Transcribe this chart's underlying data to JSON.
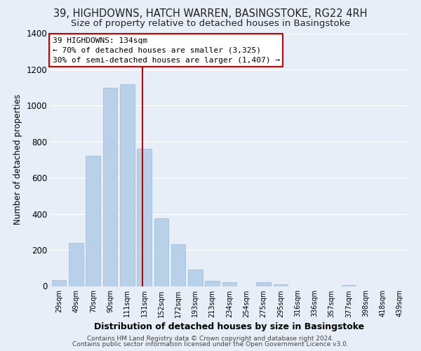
{
  "title": "39, HIGHDOWNS, HATCH WARREN, BASINGSTOKE, RG22 4RH",
  "subtitle": "Size of property relative to detached houses in Basingstoke",
  "xlabel": "Distribution of detached houses by size in Basingstoke",
  "ylabel": "Number of detached properties",
  "bar_labels": [
    "29sqm",
    "49sqm",
    "70sqm",
    "90sqm",
    "111sqm",
    "131sqm",
    "152sqm",
    "172sqm",
    "193sqm",
    "213sqm",
    "234sqm",
    "254sqm",
    "275sqm",
    "295sqm",
    "316sqm",
    "336sqm",
    "357sqm",
    "377sqm",
    "398sqm",
    "418sqm",
    "439sqm"
  ],
  "bar_values": [
    35,
    240,
    720,
    1100,
    1120,
    760,
    375,
    230,
    90,
    30,
    20,
    0,
    20,
    10,
    0,
    0,
    0,
    5,
    0,
    0,
    0
  ],
  "bar_color": "#b8d0e8",
  "bar_edge_color": "#9ab8d8",
  "vline_color": "#cc0000",
  "annotation_title": "39 HIGHDOWNS: 134sqm",
  "annotation_line1": "← 70% of detached houses are smaller (3,325)",
  "annotation_line2": "30% of semi-detached houses are larger (1,407) →",
  "annotation_box_color": "#ffffff",
  "annotation_box_edge": "#cc0000",
  "ylim": [
    0,
    1400
  ],
  "yticks": [
    0,
    200,
    400,
    600,
    800,
    1000,
    1200,
    1400
  ],
  "footer1": "Contains HM Land Registry data © Crown copyright and database right 2024.",
  "footer2": "Contains public sector information licensed under the Open Government Licence v3.0.",
  "bg_color": "#e8eef8",
  "plot_bg_color": "#e8eef8",
  "grid_color": "#ffffff",
  "title_fontsize": 10.5,
  "subtitle_fontsize": 9.5
}
